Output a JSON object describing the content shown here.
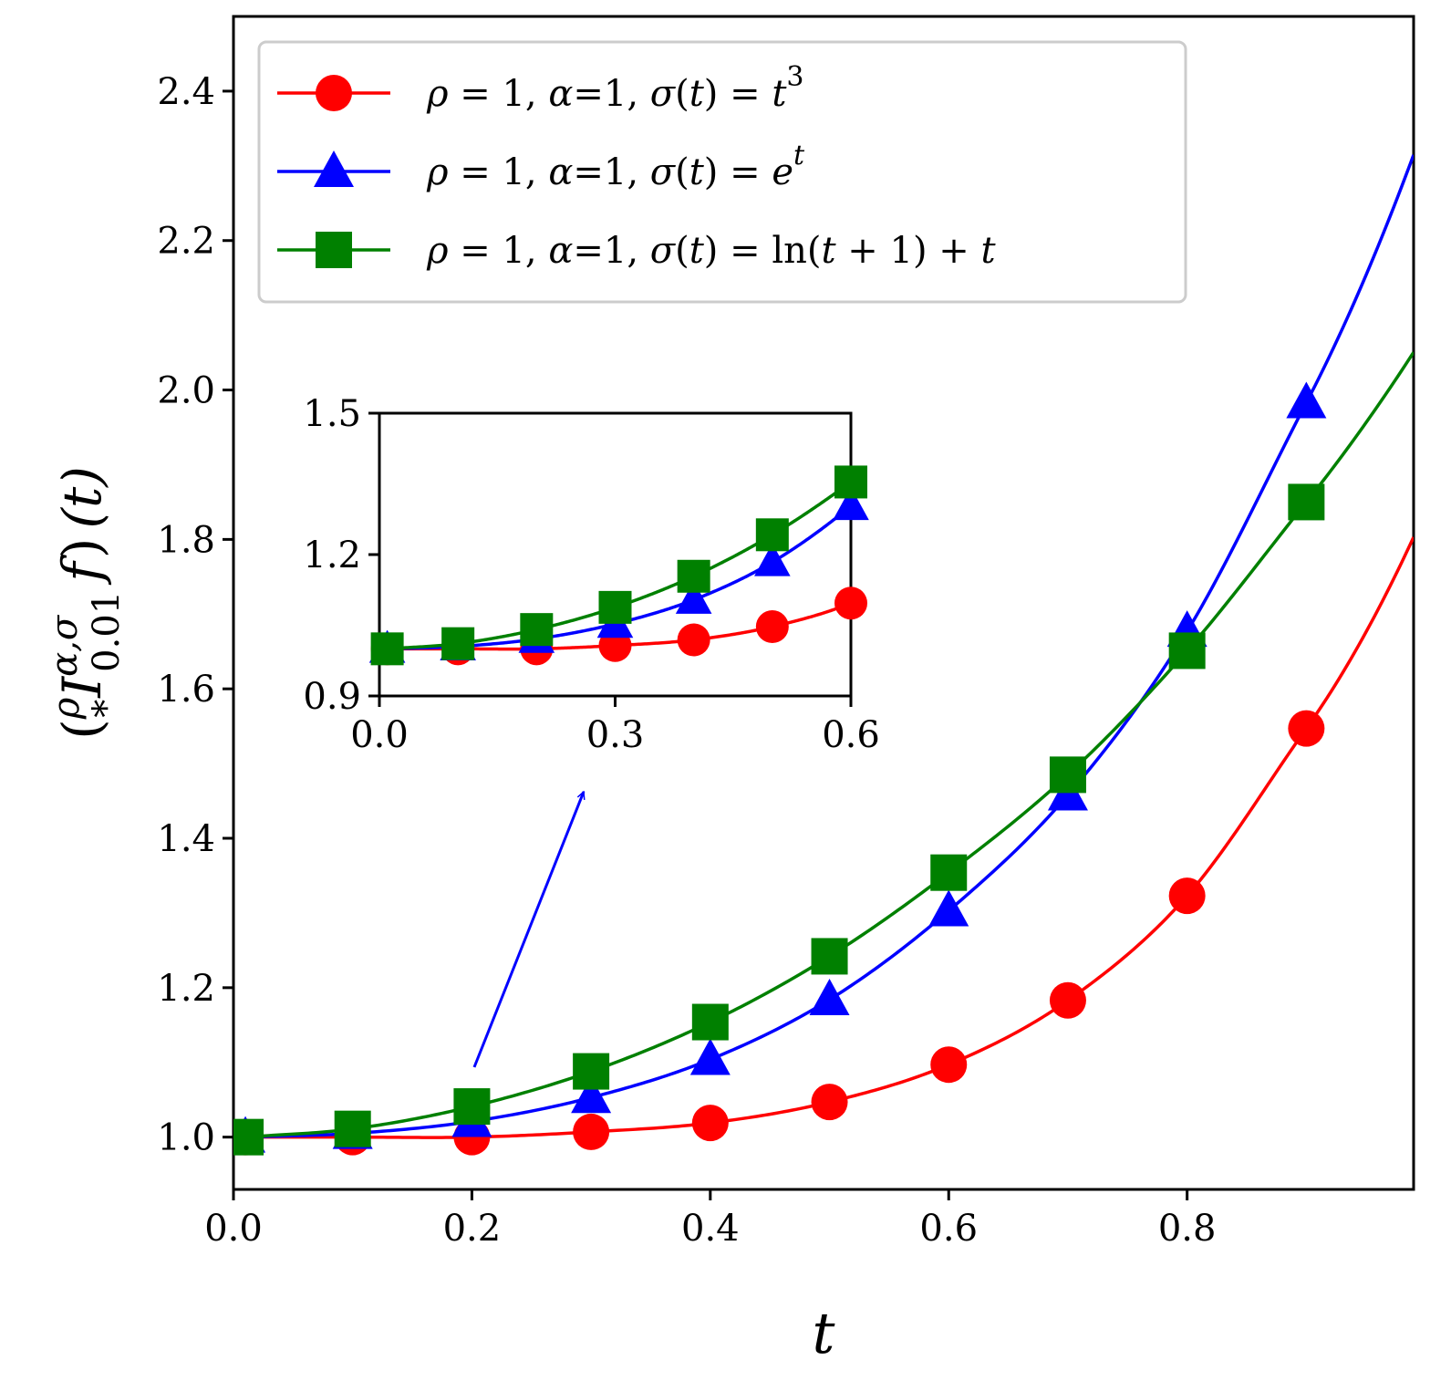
{
  "chart_data": {
    "type": "line",
    "xlabel": "t",
    "ylabel": "(ρ I^{α,σ}_{*0.01} f)(t)",
    "ylabel_parts": {
      "open": "(",
      "rho": "ρ",
      "I": "I",
      "sup": "α,σ",
      "sub_star": "*",
      "sub_a": "0.01",
      "f": "f",
      "close": ")",
      "arg": "(t)"
    },
    "xlim": [
      0.0,
      0.99
    ],
    "ylim": [
      0.93,
      2.5
    ],
    "xticks": [
      "0.0",
      "0.2",
      "0.4",
      "0.6",
      "0.8"
    ],
    "yticks": [
      "1.0",
      "1.2",
      "1.4",
      "1.6",
      "1.8",
      "2.0",
      "2.2",
      "2.4"
    ],
    "marker_x": [
      0.01,
      0.1,
      0.2,
      0.3,
      0.4,
      0.5,
      0.6,
      0.7,
      0.8,
      0.9
    ],
    "series": [
      {
        "name": "ρ = 1, α=1, σ(t) = t³",
        "legend_parts": [
          "ρ",
          " = 1, ",
          "α",
          "=1, ",
          "σ",
          "(",
          "t",
          ") = ",
          "t",
          "3"
        ],
        "color": "#ff0000",
        "marker": "circle",
        "marker_values": [
          1.0,
          1.0,
          1.0,
          1.007,
          1.019,
          1.047,
          1.097,
          1.183,
          1.323,
          1.547
        ]
      },
      {
        "name": "ρ = 1, α=1, σ(t) = e^t",
        "legend_parts": [
          "ρ",
          " = 1, ",
          "α",
          "=1, ",
          "σ",
          "(",
          "t",
          ") = ",
          "e",
          "t"
        ],
        "color": "#0000ff",
        "marker": "triangle",
        "marker_values": [
          1.0,
          1.005,
          1.021,
          1.053,
          1.104,
          1.184,
          1.303,
          1.458,
          1.677,
          1.983
        ]
      },
      {
        "name": "ρ = 1, α=1, σ(t) = ln(t + 1) + t",
        "legend_parts": [
          "ρ",
          " = 1, ",
          "α",
          "=1, ",
          "σ",
          "(",
          "t",
          ") = ln(",
          "t",
          " + 1) + ",
          "t"
        ],
        "color": "#008000",
        "marker": "square",
        "marker_values": [
          1.0,
          1.011,
          1.041,
          1.088,
          1.154,
          1.242,
          1.354,
          1.485,
          1.651,
          1.85
        ]
      }
    ],
    "inset": {
      "xlim": [
        0.0,
        0.6
      ],
      "ylim": [
        0.9,
        1.5
      ],
      "xticks": [
        "0.0",
        "0.3",
        "0.6"
      ],
      "yticks": [
        "0.9",
        "1.2",
        "1.5"
      ],
      "marker_x": [
        0.01,
        0.1,
        0.2,
        0.3,
        0.4,
        0.5,
        0.6
      ]
    },
    "legend_position": "upper center",
    "annotation": "arrow pointing from main plot region near t=0.2 to the inset"
  }
}
